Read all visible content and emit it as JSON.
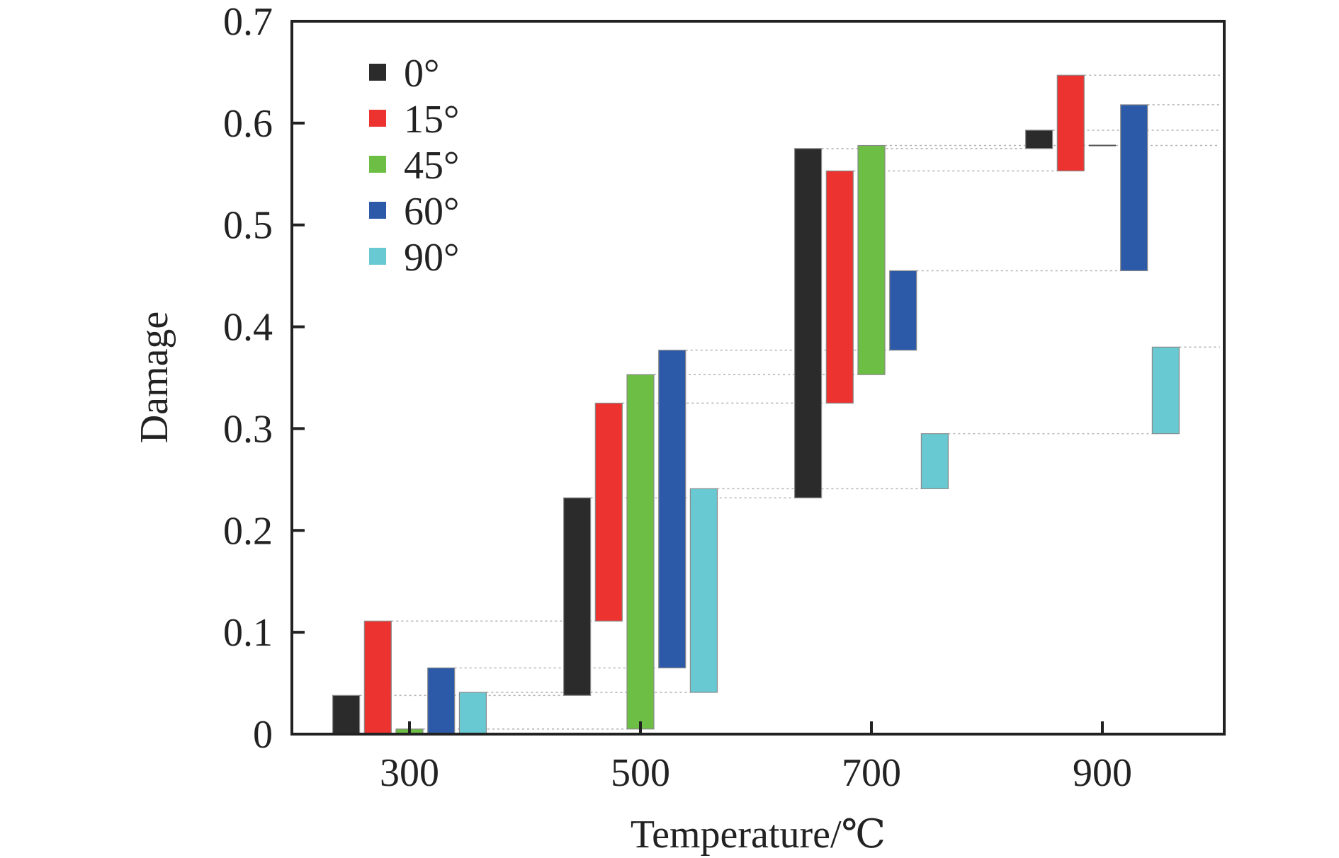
{
  "chart_data": {
    "type": "bar",
    "subtype": "floating-waterfall",
    "title": "",
    "xlabel": "Temperature/℃",
    "ylabel": "Damage",
    "categories": [
      "300",
      "500",
      "700",
      "900"
    ],
    "ylim": [
      0,
      0.7
    ],
    "yticks": [
      "0",
      "0.1",
      "0.2",
      "0.3",
      "0.4",
      "0.5",
      "0.6",
      "0.7"
    ],
    "grid": false,
    "connector_lines": "dotted, from each bar top extending right",
    "legend": {
      "position": "top-left"
    },
    "series": [
      {
        "name": "0°",
        "color": "#2b2b2b",
        "ranges": [
          [
            0.0,
            0.038
          ],
          [
            0.038,
            0.232
          ],
          [
            0.232,
            0.575
          ],
          [
            0.575,
            0.593
          ]
        ]
      },
      {
        "name": "15°",
        "color": "#ec3330",
        "ranges": [
          [
            0.0,
            0.111
          ],
          [
            0.111,
            0.325
          ],
          [
            0.325,
            0.553
          ],
          [
            0.553,
            0.647
          ]
        ]
      },
      {
        "name": "45°",
        "color": "#6cbe45",
        "ranges": [
          [
            0.0,
            0.005
          ],
          [
            0.005,
            0.353
          ],
          [
            0.353,
            0.578
          ],
          [
            0.578,
            0.578
          ]
        ]
      },
      {
        "name": "60°",
        "color": "#2c5aa8",
        "ranges": [
          [
            0.0,
            0.065
          ],
          [
            0.065,
            0.377
          ],
          [
            0.377,
            0.455
          ],
          [
            0.455,
            0.618
          ]
        ]
      },
      {
        "name": "90°",
        "color": "#68c9d2",
        "ranges": [
          [
            0.0,
            0.041
          ],
          [
            0.041,
            0.241
          ],
          [
            0.241,
            0.295
          ],
          [
            0.295,
            0.38
          ]
        ]
      }
    ]
  }
}
